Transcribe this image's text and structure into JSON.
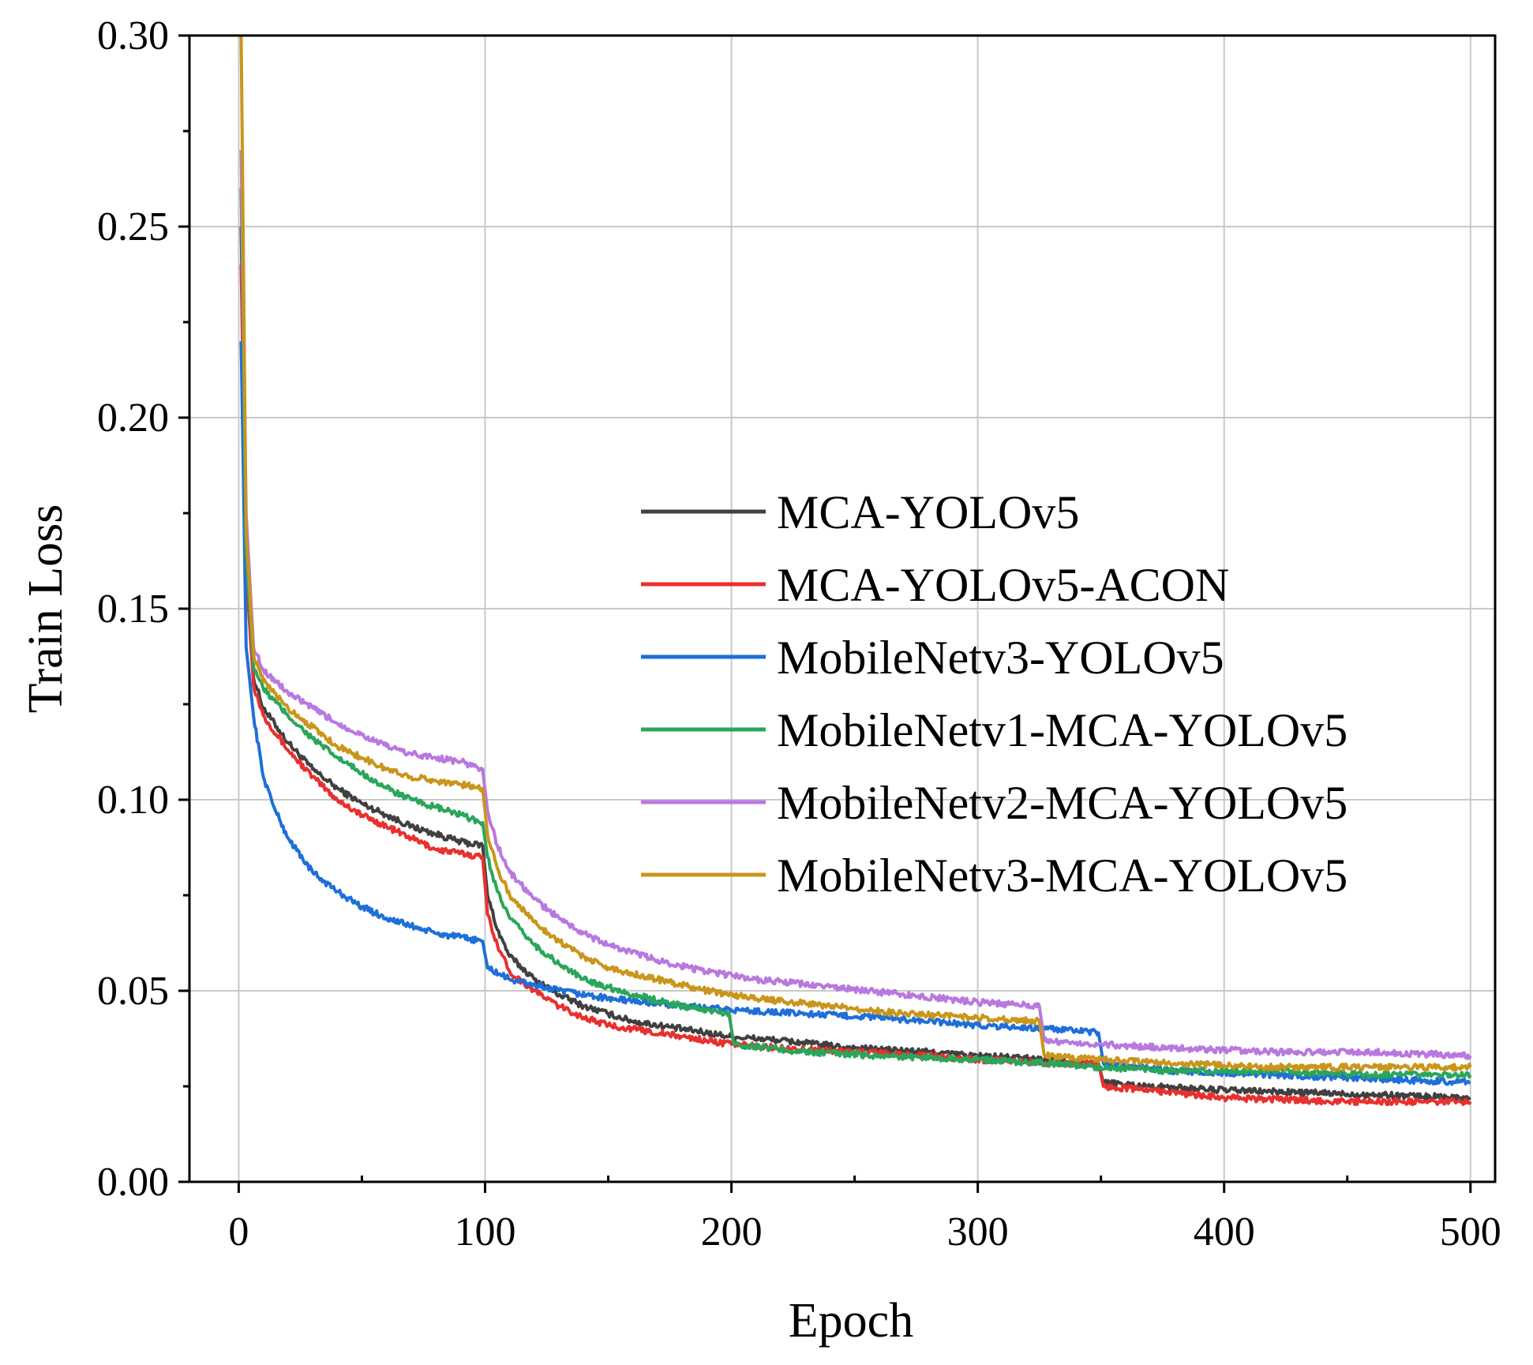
{
  "chart_data": {
    "type": "line",
    "title": "",
    "xlabel": "Epoch",
    "ylabel": "Train Loss",
    "xlim": [
      -20,
      510
    ],
    "ylim": [
      0,
      0.3
    ],
    "xticks": [
      0,
      100,
      200,
      300,
      400,
      500
    ],
    "xtick_labels": [
      "0",
      "100",
      "200",
      "300",
      "400",
      "500"
    ],
    "yticks": [
      0,
      0.05,
      0.1,
      0.15,
      0.2,
      0.25,
      0.3
    ],
    "ytick_labels": [
      "0.00",
      "0.05",
      "0.10",
      "0.15",
      "0.20",
      "0.25",
      "0.30"
    ],
    "grid": true,
    "legend_position": "center-right",
    "series": [
      {
        "name": "MCA-YOLOv5",
        "color": "#404040",
        "points": [
          [
            1,
            0.25
          ],
          [
            3,
            0.16
          ],
          [
            6,
            0.132
          ],
          [
            10,
            0.124
          ],
          [
            20,
            0.115
          ],
          [
            30,
            0.108
          ],
          [
            40,
            0.103
          ],
          [
            50,
            0.099
          ],
          [
            60,
            0.096
          ],
          [
            70,
            0.093
          ],
          [
            80,
            0.091
          ],
          [
            90,
            0.089
          ],
          [
            99,
            0.088
          ],
          [
            101,
            0.075
          ],
          [
            105,
            0.066
          ],
          [
            110,
            0.059
          ],
          [
            120,
            0.053
          ],
          [
            130,
            0.049
          ],
          [
            140,
            0.046
          ],
          [
            150,
            0.044
          ],
          [
            160,
            0.042
          ],
          [
            180,
            0.04
          ],
          [
            200,
            0.038
          ],
          [
            220,
            0.037
          ],
          [
            250,
            0.035
          ],
          [
            280,
            0.034
          ],
          [
            300,
            0.033
          ],
          [
            330,
            0.032
          ],
          [
            349,
            0.031
          ],
          [
            351,
            0.026
          ],
          [
            370,
            0.025
          ],
          [
            400,
            0.024
          ],
          [
            450,
            0.023
          ],
          [
            500,
            0.022
          ]
        ]
      },
      {
        "name": "MCA-YOLOv5-ACON",
        "color": "#e8302e",
        "points": [
          [
            1,
            0.24
          ],
          [
            3,
            0.16
          ],
          [
            6,
            0.13
          ],
          [
            10,
            0.122
          ],
          [
            20,
            0.113
          ],
          [
            30,
            0.106
          ],
          [
            40,
            0.1
          ],
          [
            50,
            0.096
          ],
          [
            60,
            0.093
          ],
          [
            70,
            0.09
          ],
          [
            80,
            0.087
          ],
          [
            90,
            0.086
          ],
          [
            99,
            0.085
          ],
          [
            101,
            0.07
          ],
          [
            105,
            0.062
          ],
          [
            110,
            0.055
          ],
          [
            120,
            0.05
          ],
          [
            130,
            0.046
          ],
          [
            140,
            0.043
          ],
          [
            150,
            0.041
          ],
          [
            160,
            0.04
          ],
          [
            180,
            0.038
          ],
          [
            200,
            0.036
          ],
          [
            220,
            0.035
          ],
          [
            250,
            0.034
          ],
          [
            280,
            0.033
          ],
          [
            300,
            0.032
          ],
          [
            330,
            0.031
          ],
          [
            349,
            0.031
          ],
          [
            351,
            0.025
          ],
          [
            370,
            0.024
          ],
          [
            400,
            0.022
          ],
          [
            450,
            0.021
          ],
          [
            500,
            0.021
          ]
        ]
      },
      {
        "name": "MobileNetv3-YOLOv5",
        "color": "#1e6fd9",
        "points": [
          [
            1,
            0.22
          ],
          [
            3,
            0.14
          ],
          [
            6,
            0.122
          ],
          [
            10,
            0.106
          ],
          [
            15,
            0.097
          ],
          [
            20,
            0.09
          ],
          [
            30,
            0.081
          ],
          [
            40,
            0.076
          ],
          [
            50,
            0.072
          ],
          [
            60,
            0.069
          ],
          [
            70,
            0.067
          ],
          [
            80,
            0.065
          ],
          [
            90,
            0.064
          ],
          [
            99,
            0.063
          ],
          [
            101,
            0.056
          ],
          [
            110,
            0.053
          ],
          [
            130,
            0.05
          ],
          [
            150,
            0.048
          ],
          [
            180,
            0.046
          ],
          [
            200,
            0.045
          ],
          [
            230,
            0.044
          ],
          [
            260,
            0.043
          ],
          [
            300,
            0.041
          ],
          [
            330,
            0.04
          ],
          [
            349,
            0.039
          ],
          [
            351,
            0.031
          ],
          [
            380,
            0.029
          ],
          [
            420,
            0.028
          ],
          [
            460,
            0.027
          ],
          [
            500,
            0.026
          ]
        ]
      },
      {
        "name": "MobileNetv1-MCA-YOLOv5",
        "color": "#2aa65a",
        "points": [
          [
            1,
            0.26
          ],
          [
            3,
            0.165
          ],
          [
            6,
            0.135
          ],
          [
            10,
            0.129
          ],
          [
            20,
            0.122
          ],
          [
            30,
            0.116
          ],
          [
            40,
            0.111
          ],
          [
            50,
            0.107
          ],
          [
            60,
            0.103
          ],
          [
            70,
            0.1
          ],
          [
            80,
            0.098
          ],
          [
            90,
            0.096
          ],
          [
            99,
            0.094
          ],
          [
            101,
            0.085
          ],
          [
            105,
            0.076
          ],
          [
            110,
            0.069
          ],
          [
            120,
            0.062
          ],
          [
            130,
            0.057
          ],
          [
            140,
            0.053
          ],
          [
            150,
            0.051
          ],
          [
            160,
            0.049
          ],
          [
            180,
            0.046
          ],
          [
            199,
            0.044
          ],
          [
            201,
            0.036
          ],
          [
            230,
            0.034
          ],
          [
            260,
            0.033
          ],
          [
            300,
            0.032
          ],
          [
            330,
            0.031
          ],
          [
            350,
            0.03
          ],
          [
            380,
            0.029
          ],
          [
            420,
            0.029
          ],
          [
            460,
            0.028
          ],
          [
            500,
            0.028
          ]
        ]
      },
      {
        "name": "MobileNetv2-MCA-YOLOv5",
        "color": "#b878e0",
        "points": [
          [
            1,
            0.27
          ],
          [
            3,
            0.175
          ],
          [
            6,
            0.14
          ],
          [
            10,
            0.134
          ],
          [
            20,
            0.128
          ],
          [
            30,
            0.124
          ],
          [
            40,
            0.12
          ],
          [
            50,
            0.117
          ],
          [
            60,
            0.114
          ],
          [
            70,
            0.112
          ],
          [
            80,
            0.111
          ],
          [
            90,
            0.11
          ],
          [
            99,
            0.108
          ],
          [
            101,
            0.097
          ],
          [
            105,
            0.088
          ],
          [
            110,
            0.081
          ],
          [
            120,
            0.074
          ],
          [
            130,
            0.069
          ],
          [
            140,
            0.065
          ],
          [
            150,
            0.062
          ],
          [
            170,
            0.058
          ],
          [
            190,
            0.055
          ],
          [
            210,
            0.053
          ],
          [
            240,
            0.051
          ],
          [
            270,
            0.049
          ],
          [
            300,
            0.047
          ],
          [
            325,
            0.046
          ],
          [
            327,
            0.037
          ],
          [
            350,
            0.036
          ],
          [
            380,
            0.035
          ],
          [
            420,
            0.034
          ],
          [
            460,
            0.034
          ],
          [
            500,
            0.033
          ]
        ]
      },
      {
        "name": "MobileNetv3-MCA-YOLOv5",
        "color": "#c9951b",
        "points": [
          [
            1,
            0.3
          ],
          [
            3,
            0.17
          ],
          [
            6,
            0.138
          ],
          [
            10,
            0.131
          ],
          [
            20,
            0.124
          ],
          [
            30,
            0.119
          ],
          [
            40,
            0.114
          ],
          [
            50,
            0.111
          ],
          [
            60,
            0.108
          ],
          [
            70,
            0.106
          ],
          [
            80,
            0.105
          ],
          [
            90,
            0.104
          ],
          [
            99,
            0.103
          ],
          [
            101,
            0.091
          ],
          [
            105,
            0.082
          ],
          [
            110,
            0.075
          ],
          [
            120,
            0.068
          ],
          [
            130,
            0.063
          ],
          [
            140,
            0.059
          ],
          [
            150,
            0.056
          ],
          [
            170,
            0.053
          ],
          [
            190,
            0.05
          ],
          [
            210,
            0.048
          ],
          [
            240,
            0.046
          ],
          [
            270,
            0.044
          ],
          [
            300,
            0.043
          ],
          [
            325,
            0.042
          ],
          [
            327,
            0.033
          ],
          [
            350,
            0.032
          ],
          [
            380,
            0.031
          ],
          [
            420,
            0.03
          ],
          [
            460,
            0.03
          ],
          [
            500,
            0.03
          ]
        ]
      }
    ]
  }
}
